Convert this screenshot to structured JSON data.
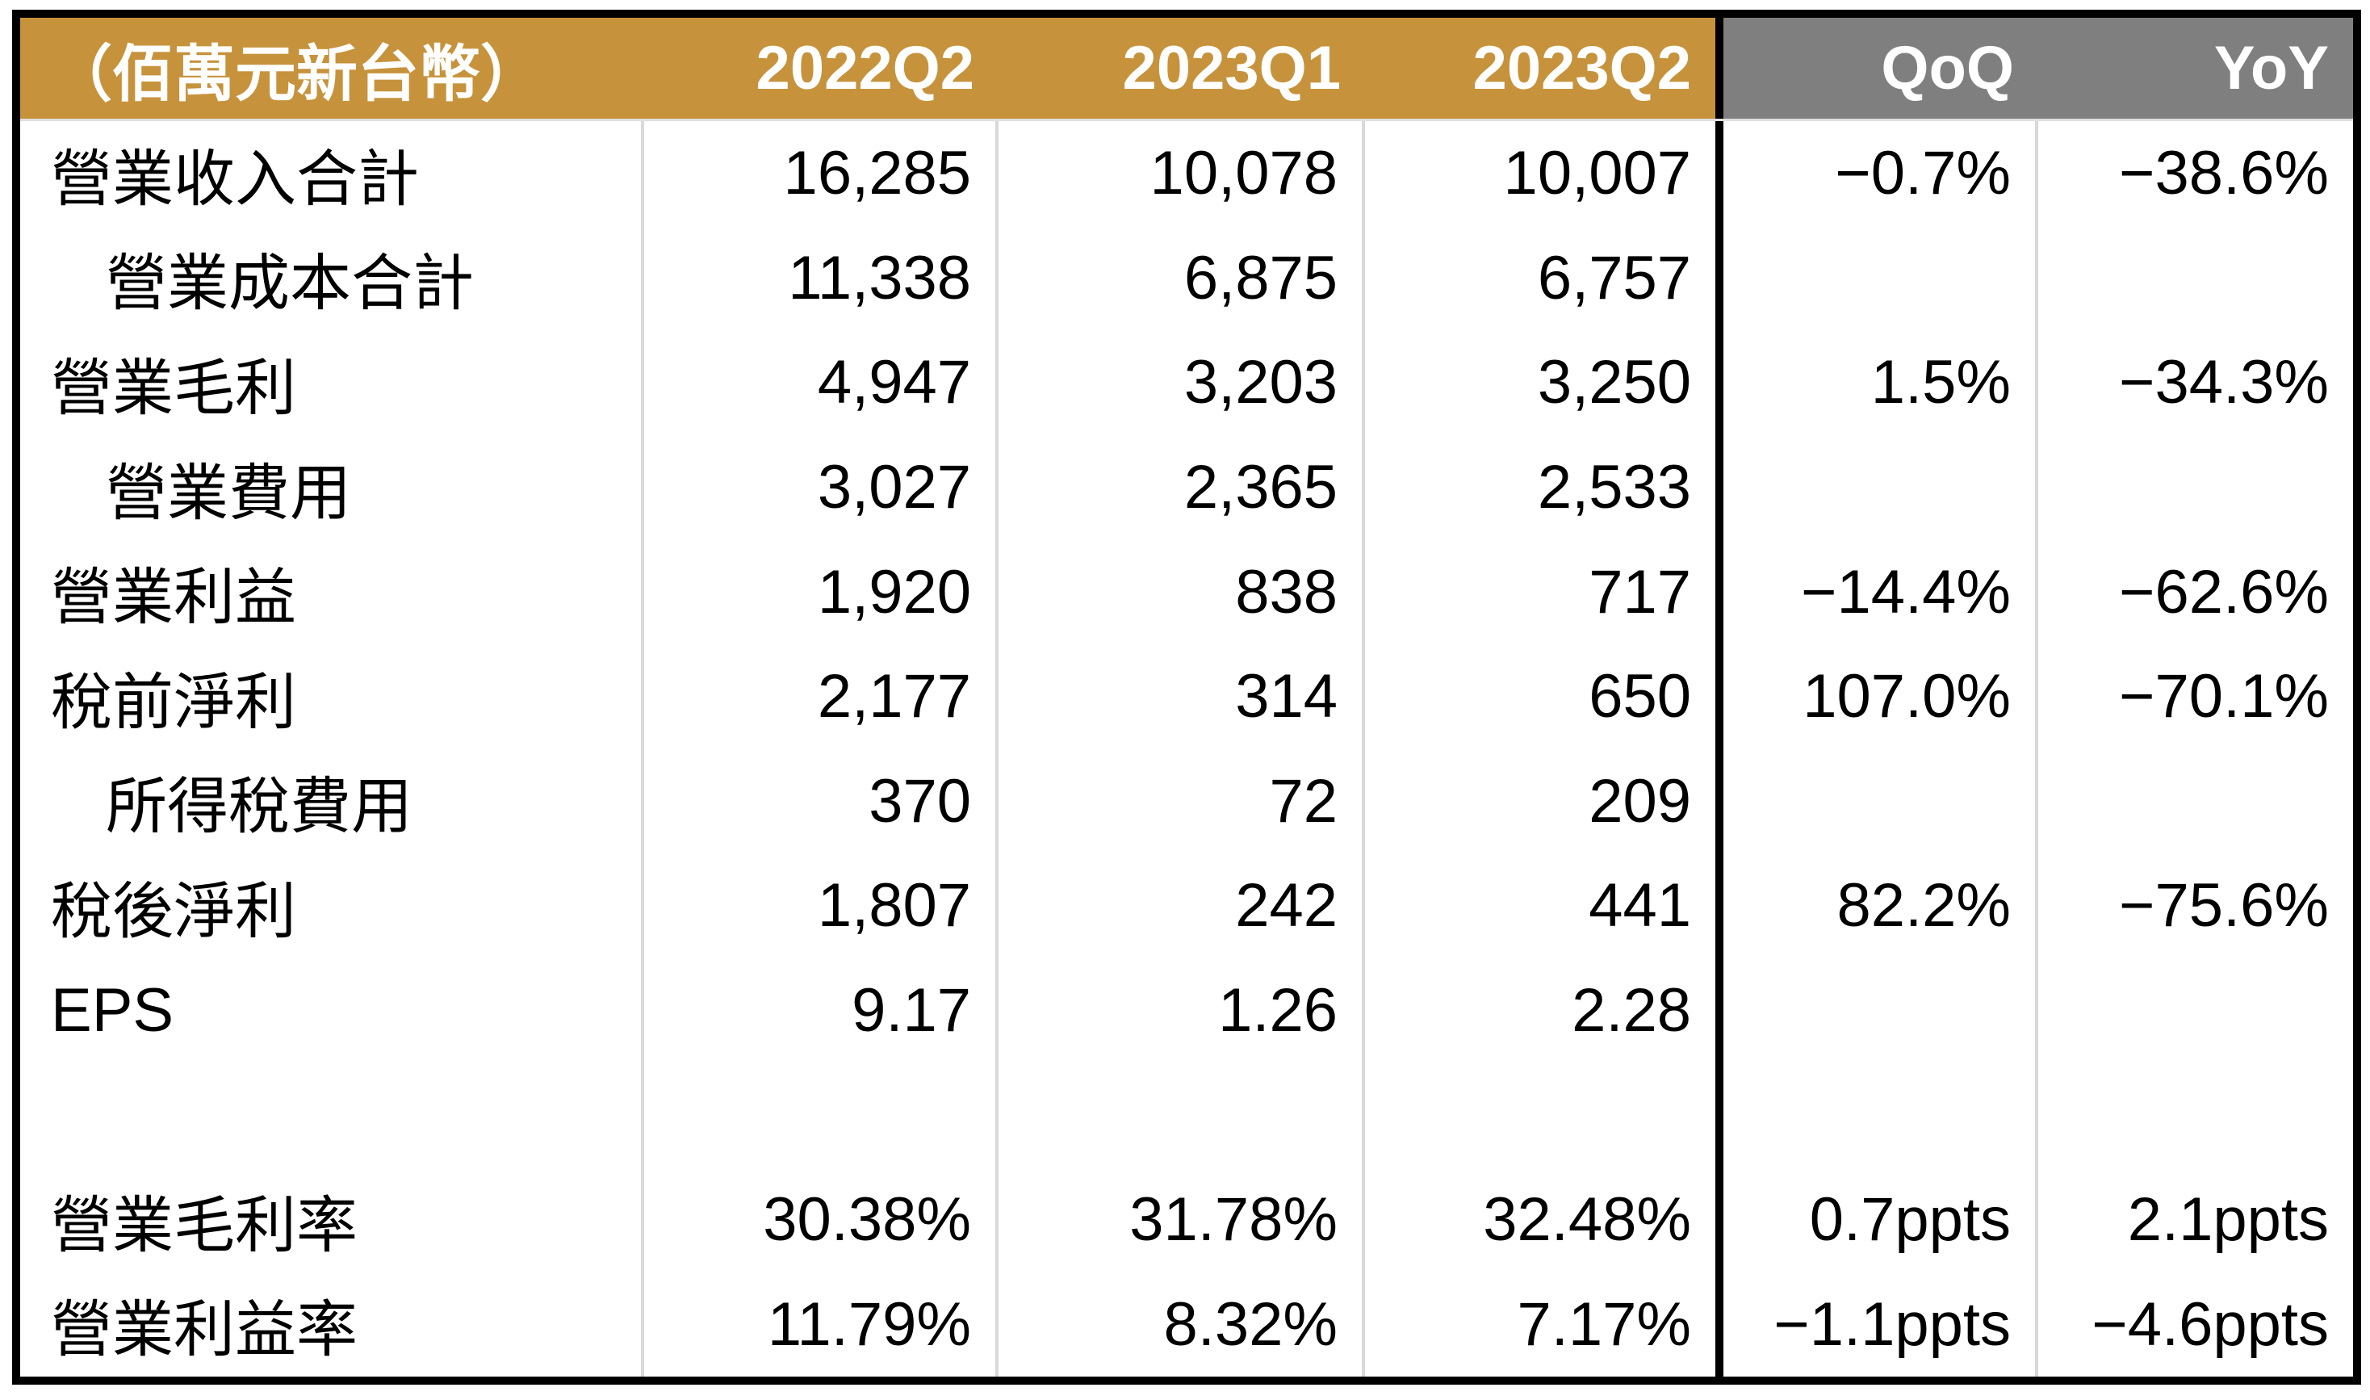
{
  "colors": {
    "header_accent_gold": "#C6933C",
    "header_secondary_gray": "#7F7F7F",
    "frame_border": "#000000",
    "grid_separator": "#D9D9D9",
    "header_text": "#FFFFFF",
    "body_text": "#000000"
  },
  "table": {
    "unit_note": "（佰萬元新台幣）",
    "columns": [
      "（佰萬元新台幣）",
      "2022Q2",
      "2023Q1",
      "2023Q2",
      "QoQ",
      "YoY"
    ],
    "rows": [
      {
        "label": "營業收入合計",
        "indent": false,
        "values": [
          "16,285",
          "10,078",
          "10,007",
          "−0.7%",
          "−38.6%"
        ]
      },
      {
        "label": "營業成本合計",
        "indent": true,
        "values": [
          "11,338",
          "6,875",
          "6,757",
          "",
          ""
        ]
      },
      {
        "label": "營業毛利",
        "indent": false,
        "values": [
          "4,947",
          "3,203",
          "3,250",
          "1.5%",
          "−34.3%"
        ]
      },
      {
        "label": "營業費用",
        "indent": true,
        "values": [
          "3,027",
          "2,365",
          "2,533",
          "",
          ""
        ]
      },
      {
        "label": "營業利益",
        "indent": false,
        "values": [
          "1,920",
          "838",
          "717",
          "−14.4%",
          "−62.6%"
        ]
      },
      {
        "label": "稅前淨利",
        "indent": false,
        "values": [
          "2,177",
          "314",
          "650",
          "107.0%",
          "−70.1%"
        ]
      },
      {
        "label": "所得稅費用",
        "indent": true,
        "values": [
          "370",
          "72",
          "209",
          "",
          ""
        ]
      },
      {
        "label": "稅後淨利",
        "indent": false,
        "values": [
          "1,807",
          "242",
          "441",
          "82.2%",
          "−75.6%"
        ]
      },
      {
        "label": "EPS",
        "indent": false,
        "values": [
          "9.17",
          "1.26",
          "2.28",
          "",
          ""
        ]
      },
      {
        "label": "",
        "indent": false,
        "values": [
          "",
          "",
          "",
          "",
          ""
        ]
      },
      {
        "label": "營業毛利率",
        "indent": false,
        "values": [
          "30.38%",
          "31.78%",
          "32.48%",
          "0.7ppts",
          "2.1ppts"
        ]
      },
      {
        "label": "營業利益率",
        "indent": false,
        "values": [
          "11.79%",
          "8.32%",
          "7.17%",
          "−1.1ppts",
          "−4.6ppts"
        ]
      }
    ]
  }
}
